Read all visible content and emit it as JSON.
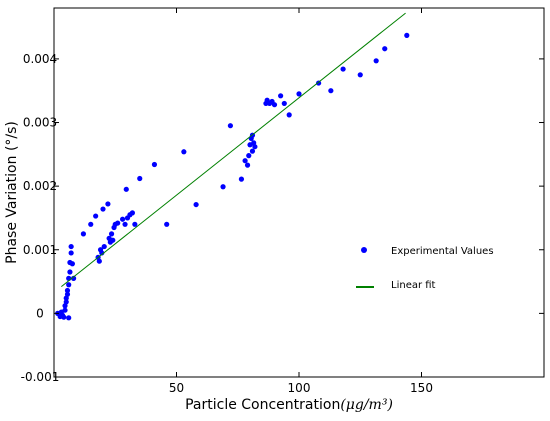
{
  "chart_data": {
    "type": "scatter",
    "title": "",
    "xlabel": "Particle Concentration",
    "xlabel_unit": "(μg/m³)",
    "ylabel": "Phase Variation (°/s)",
    "xlim": [
      0,
      200
    ],
    "ylim": [
      -0.001,
      0.0048
    ],
    "xticks": [
      {
        "value": 50,
        "label": "50"
      },
      {
        "value": 100,
        "label": "100"
      },
      {
        "value": 150,
        "label": "150"
      }
    ],
    "yticks": [
      {
        "value": -0.001,
        "label": "-0.001"
      },
      {
        "value": 0,
        "label": "0"
      },
      {
        "value": 0.001,
        "label": "0.001"
      },
      {
        "value": 0.002,
        "label": "0.002"
      },
      {
        "value": 0.003,
        "label": "0.003"
      },
      {
        "value": 0.004,
        "label": "0.004"
      }
    ],
    "grid": false,
    "legend_position": "center-right",
    "series": [
      {
        "name": "Experimental Values",
        "type": "scatter",
        "color": "#0000ff",
        "points": [
          [
            1.5,
            0.0
          ],
          [
            2.5,
            -5e-05
          ],
          [
            3.0,
            2e-05
          ],
          [
            3.5,
            -3e-05
          ],
          [
            4.0,
            -6e-05
          ],
          [
            4.5,
            5e-05
          ],
          [
            4.5,
            0.00012
          ],
          [
            5.0,
            0.00018
          ],
          [
            5.0,
            0.00024
          ],
          [
            5.5,
            0.0003
          ],
          [
            5.5,
            0.00036
          ],
          [
            6.0,
            0.00045
          ],
          [
            6.0,
            0.00055
          ],
          [
            6.0,
            -7e-05
          ],
          [
            6.5,
            0.00065
          ],
          [
            6.5,
            0.0008
          ],
          [
            7.0,
            0.00095
          ],
          [
            7.0,
            0.00105
          ],
          [
            7.5,
            0.00078
          ],
          [
            8.0,
            0.00055
          ],
          [
            12.0,
            0.00125
          ],
          [
            15.0,
            0.0014
          ],
          [
            17.0,
            0.00153
          ],
          [
            18.0,
            0.00088
          ],
          [
            18.5,
            0.00082
          ],
          [
            19.0,
            0.001
          ],
          [
            19.5,
            0.00095
          ],
          [
            20.0,
            0.00164
          ],
          [
            20.5,
            0.00105
          ],
          [
            22.0,
            0.00172
          ],
          [
            22.5,
            0.00118
          ],
          [
            23.0,
            0.00112
          ],
          [
            23.5,
            0.00125
          ],
          [
            24.0,
            0.00115
          ],
          [
            24.5,
            0.00135
          ],
          [
            25.0,
            0.0014
          ],
          [
            26.0,
            0.00142
          ],
          [
            28.0,
            0.00148
          ],
          [
            29.0,
            0.0014
          ],
          [
            29.5,
            0.00195
          ],
          [
            30.0,
            0.0015
          ],
          [
            31.0,
            0.00155
          ],
          [
            32.0,
            0.00158
          ],
          [
            33.0,
            0.0014
          ],
          [
            35.0,
            0.00212
          ],
          [
            41.0,
            0.00234
          ],
          [
            46.0,
            0.0014
          ],
          [
            53.0,
            0.00254
          ],
          [
            58.0,
            0.00171
          ],
          [
            69.0,
            0.00199
          ],
          [
            72.0,
            0.00295
          ],
          [
            76.5,
            0.00211
          ],
          [
            78.0,
            0.0024
          ],
          [
            79.0,
            0.00233
          ],
          [
            79.5,
            0.00248
          ],
          [
            80.0,
            0.00265
          ],
          [
            80.5,
            0.00275
          ],
          [
            81.0,
            0.00255
          ],
          [
            81.0,
            0.0028
          ],
          [
            81.5,
            0.00268
          ],
          [
            82.0,
            0.00262
          ],
          [
            86.5,
            0.0033
          ],
          [
            87.0,
            0.00335
          ],
          [
            88.0,
            0.0033
          ],
          [
            89.0,
            0.00333
          ],
          [
            90.0,
            0.00328
          ],
          [
            92.5,
            0.00342
          ],
          [
            94.0,
            0.0033
          ],
          [
            96.0,
            0.00312
          ],
          [
            100.0,
            0.00345
          ],
          [
            108.0,
            0.00362
          ],
          [
            113.0,
            0.0035
          ],
          [
            118.0,
            0.00384
          ],
          [
            125.0,
            0.00375
          ],
          [
            131.5,
            0.00397
          ],
          [
            135.0,
            0.00416
          ],
          [
            144.0,
            0.00437
          ]
        ]
      },
      {
        "name": "Linear fit",
        "type": "line",
        "color": "#008000",
        "x": [
          3,
          143.5
        ],
        "y": [
          0.00042,
          0.00472
        ]
      }
    ]
  }
}
